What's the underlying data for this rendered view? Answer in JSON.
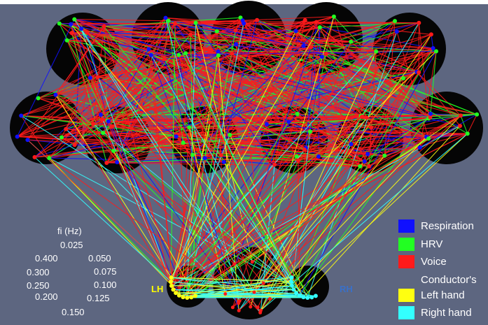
{
  "colors": {
    "background": "#5d6680",
    "top_border": "#ffffff",
    "respiration": "#1010ff",
    "hrv": "#22ff22",
    "voice": "#ff1a1a",
    "left_hand": "#ffff10",
    "right_hand": "#33ffff",
    "lh_label": "#ffff00",
    "rh_label": "#3a70c8",
    "circle_fill": "#050505"
  },
  "frequency_legend": {
    "title": "fi (Hz)",
    "values": [
      "0.025",
      "0.050",
      "0.075",
      "0.100",
      "0.125",
      "0.150",
      "0.200",
      "0.250",
      "0.300",
      "0.400"
    ]
  },
  "hand_labels": {
    "left": "LH",
    "right": "RH"
  },
  "legend": {
    "items": [
      {
        "label": "Respiration",
        "color": "#1010ff"
      },
      {
        "label": "HRV",
        "color": "#22ff22"
      },
      {
        "label": "Voice",
        "color": "#ff1a1a"
      }
    ],
    "conductor_heading": "Conductor's",
    "conductor_items": [
      {
        "label": "Left hand",
        "color": "#ffff10"
      },
      {
        "label": "Right hand",
        "color": "#33ffff"
      }
    ]
  }
}
